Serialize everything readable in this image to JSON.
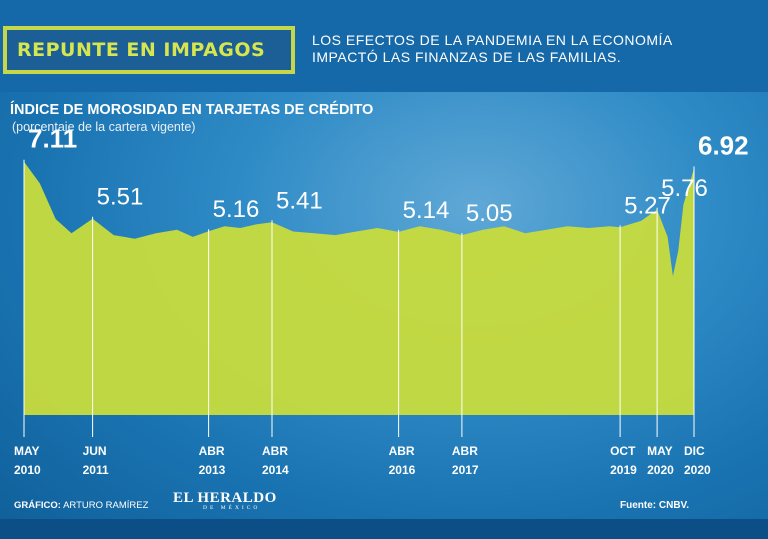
{
  "header": {
    "title": "REPUNTE EN IMPAGOS",
    "subtitle_line1": "LOS EFECTOS DE LA PANDEMIA EN LA ECONOMÍA",
    "subtitle_line2": "IMPACTÓ LAS FINANZAS DE LAS FAMILIAS."
  },
  "footer": {
    "credit_label": "GRÁFICO:",
    "credit_name": "ARTURO RAMÍREZ",
    "logo_main": "EL HERALDO",
    "logo_sub": "DE MÉXICO",
    "source": "Fuente: CNBV."
  },
  "colors": {
    "accent": "#d7e64e",
    "area_fill": "#c8dc3c",
    "background": "#1a74b2"
  },
  "chart_data": {
    "type": "area",
    "title": "ÍNDICE DE MOROSIDAD EN TARJETAS DE CRÉDITO",
    "subtitle": "(porcentaje de la cartera vigente)",
    "unit": "%",
    "x_start": "2010-05",
    "x_end": "2020-12",
    "ylim": [
      0,
      8
    ],
    "grid": false,
    "series": [
      {
        "values": [
          {
            "date": "2010-05",
            "value": 7.11
          },
          {
            "date": "2010-08",
            "value": 6.5
          },
          {
            "date": "2010-11",
            "value": 5.5
          },
          {
            "date": "2011-02",
            "value": 5.1
          },
          {
            "date": "2011-06",
            "value": 5.51
          },
          {
            "date": "2011-10",
            "value": 5.05
          },
          {
            "date": "2012-02",
            "value": 4.95
          },
          {
            "date": "2012-06",
            "value": 5.1
          },
          {
            "date": "2012-10",
            "value": 5.2
          },
          {
            "date": "2013-01",
            "value": 5.0
          },
          {
            "date": "2013-04",
            "value": 5.16
          },
          {
            "date": "2013-07",
            "value": 5.3
          },
          {
            "date": "2013-10",
            "value": 5.25
          },
          {
            "date": "2014-01",
            "value": 5.35
          },
          {
            "date": "2014-04",
            "value": 5.41
          },
          {
            "date": "2014-08",
            "value": 5.15
          },
          {
            "date": "2014-12",
            "value": 5.1
          },
          {
            "date": "2015-04",
            "value": 5.05
          },
          {
            "date": "2015-08",
            "value": 5.15
          },
          {
            "date": "2015-12",
            "value": 5.25
          },
          {
            "date": "2016-04",
            "value": 5.14
          },
          {
            "date": "2016-08",
            "value": 5.3
          },
          {
            "date": "2016-12",
            "value": 5.2
          },
          {
            "date": "2017-04",
            "value": 5.05
          },
          {
            "date": "2017-08",
            "value": 5.2
          },
          {
            "date": "2017-12",
            "value": 5.3
          },
          {
            "date": "2018-04",
            "value": 5.1
          },
          {
            "date": "2018-08",
            "value": 5.2
          },
          {
            "date": "2018-12",
            "value": 5.3
          },
          {
            "date": "2019-04",
            "value": 5.25
          },
          {
            "date": "2019-08",
            "value": 5.3
          },
          {
            "date": "2019-10",
            "value": 5.27
          },
          {
            "date": "2020-02",
            "value": 5.45
          },
          {
            "date": "2020-05",
            "value": 5.76
          },
          {
            "date": "2020-07",
            "value": 5.0
          },
          {
            "date": "2020-08",
            "value": 3.9
          },
          {
            "date": "2020-09",
            "value": 4.6
          },
          {
            "date": "2020-10",
            "value": 5.9
          },
          {
            "date": "2020-12",
            "value": 6.92
          }
        ]
      }
    ],
    "annotations": [
      {
        "date": "2010-05",
        "label": "7.11",
        "emphasis": true
      },
      {
        "date": "2011-06",
        "label": "5.51"
      },
      {
        "date": "2013-04",
        "label": "5.16"
      },
      {
        "date": "2014-04",
        "label": "5.41"
      },
      {
        "date": "2016-04",
        "label": "5.14"
      },
      {
        "date": "2017-04",
        "label": "5.05"
      },
      {
        "date": "2019-10",
        "label": "5.27"
      },
      {
        "date": "2020-05",
        "label": "5.76"
      },
      {
        "date": "2020-12",
        "label": "6.92",
        "emphasis": true
      }
    ],
    "x_ticks": [
      {
        "date": "2010-05",
        "month": "MAY",
        "year": "2010"
      },
      {
        "date": "2011-06",
        "month": "JUN",
        "year": "2011"
      },
      {
        "date": "2013-04",
        "month": "ABR",
        "year": "2013"
      },
      {
        "date": "2014-04",
        "month": "ABR",
        "year": "2014"
      },
      {
        "date": "2016-04",
        "month": "ABR",
        "year": "2016"
      },
      {
        "date": "2017-04",
        "month": "ABR",
        "year": "2017"
      },
      {
        "date": "2019-10",
        "month": "OCT",
        "year": "2019"
      },
      {
        "date": "2020-05",
        "month": "MAY",
        "year": "2020"
      },
      {
        "date": "2020-12",
        "month": "DIC",
        "year": "2020"
      }
    ]
  }
}
